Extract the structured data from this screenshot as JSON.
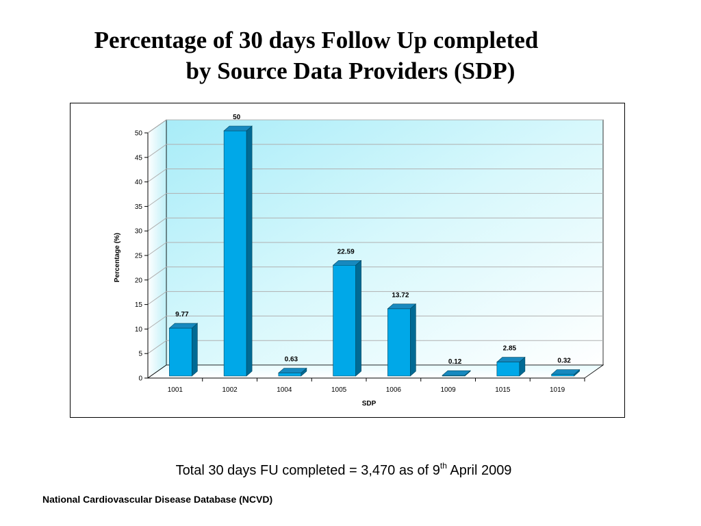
{
  "slide": {
    "title_line1": "Percentage of 30 days Follow Up completed",
    "title_line2": "by Source Data Providers (SDP)",
    "summary_prefix": "Total 30 days FU completed = 3,470 as of 9",
    "summary_sup": "th",
    "summary_suffix": " April 2009",
    "footer": "National Cardiovascular Disease Database (NCVD)"
  },
  "chart_data": {
    "type": "bar",
    "style": "3d-column",
    "categories": [
      "1001",
      "1002",
      "1004",
      "1005",
      "1006",
      "1009",
      "1015",
      "1019"
    ],
    "values": [
      9.77,
      50,
      0.63,
      22.59,
      13.72,
      0.12,
      2.85,
      0.32
    ],
    "data_labels": [
      "9.77",
      "50",
      "0.63",
      "22.59",
      "13.72",
      "0.12",
      "2.85",
      "0.32"
    ],
    "xlabel": "SDP",
    "ylabel": "Percentage (%)",
    "ylim": [
      0,
      50
    ],
    "yticks": [
      0,
      5,
      10,
      15,
      20,
      25,
      30,
      35,
      40,
      45,
      50
    ],
    "grid": true,
    "legend": "none",
    "colors": {
      "bar_front": "#00a8e8",
      "bar_side": "#006a94",
      "bar_top": "#1789bf",
      "wall": "#c4f2fa",
      "gridline": "#b0b0b0"
    }
  }
}
